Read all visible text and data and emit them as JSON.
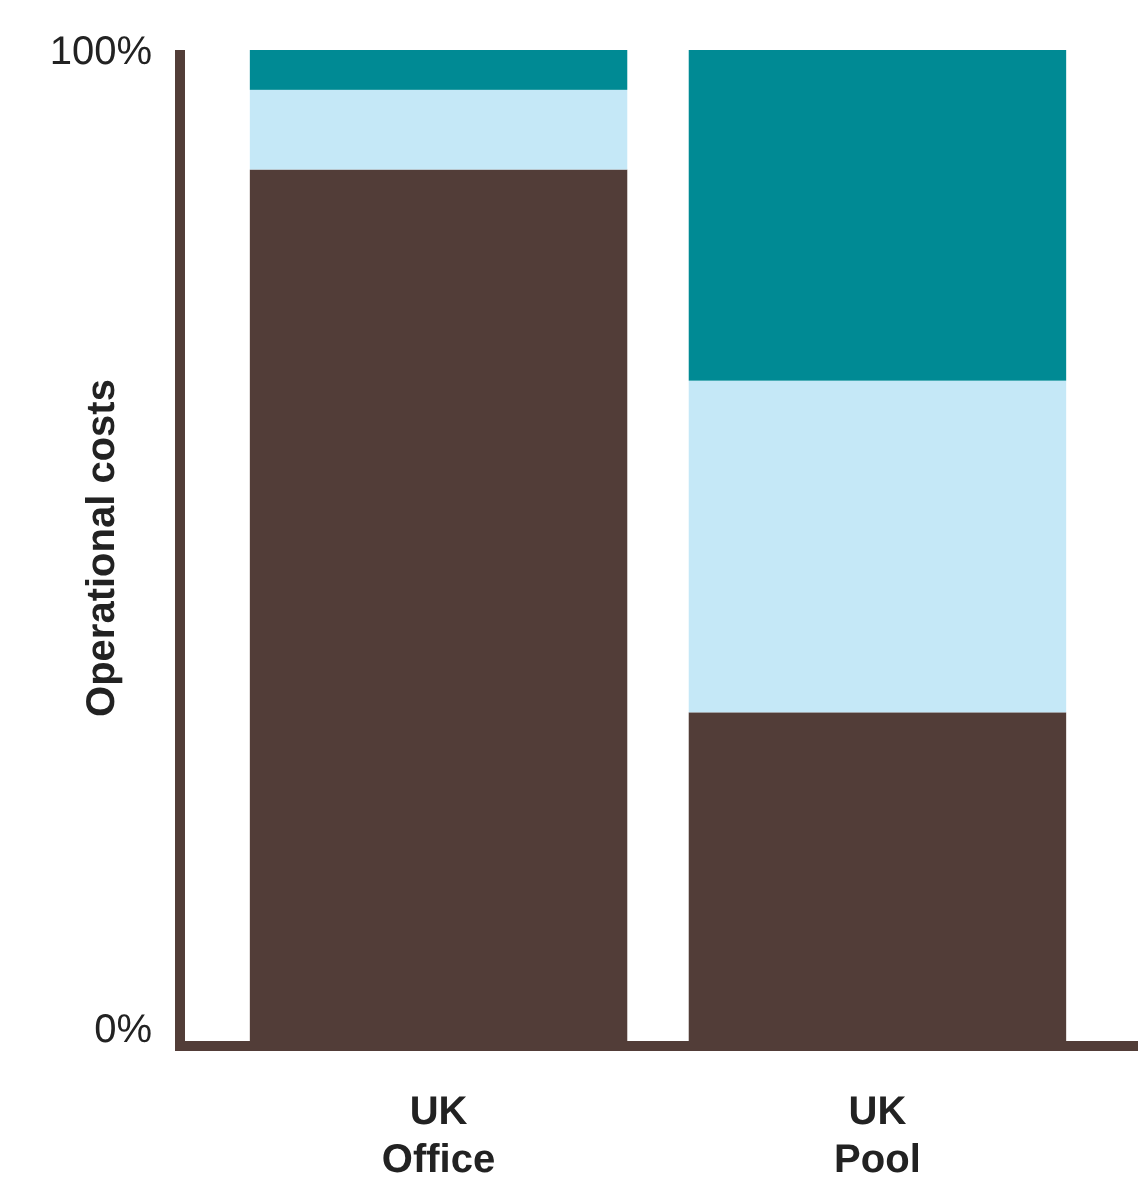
{
  "chart_data": {
    "type": "bar",
    "stacked": true,
    "ylabel": "Operational costs",
    "categories": [
      "UK Office",
      "UK Pool"
    ],
    "series": [
      {
        "color": "#523d38",
        "values": [
          88,
          33.5
        ]
      },
      {
        "color": "#c5e8f7",
        "values": [
          8,
          33.3
        ]
      },
      {
        "color": "#008a94",
        "values": [
          4,
          33.2
        ]
      }
    ],
    "ylim": [
      0,
      100
    ],
    "yticks": [
      {
        "value": 0,
        "label": "0%"
      },
      {
        "value": 100,
        "label": "100%"
      }
    ]
  }
}
